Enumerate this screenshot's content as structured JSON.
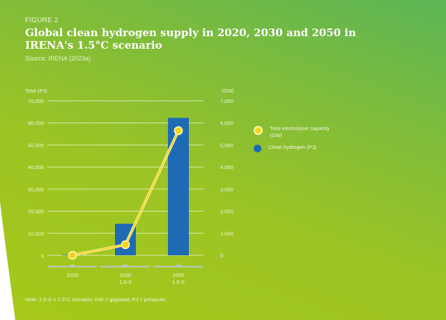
{
  "figure_label": "FIGURE 2",
  "title": "Global clean hydrogen supply in 2020, 2030 and 2050 in IRENA's 1.5°C scenario",
  "source": "Source: IRENA (2023a).",
  "note": "Note: 1.5-S = 1.5°C scenario;  GW = gigawatt; PJ = petajoule.",
  "colors": {
    "bar": "#1f6ab4",
    "line": "#f5d51a",
    "line_halo": "#f8f3b0",
    "grid": "#e9f3c8",
    "axis_base": "#b8c9b0"
  },
  "chart_data": {
    "type": "bar+line",
    "title": "Global clean hydrogen supply in 2020, 2030 and 2050 in IRENA's 1.5°C scenario",
    "categories": [
      {
        "line1": "2020",
        "line2": ""
      },
      {
        "line1": "2030",
        "line2": "1.5-S"
      },
      {
        "line1": "2050",
        "line2": "1.5-S"
      }
    ],
    "ylabel_left": "Total (PJ)",
    "ylabel_right": "(GW)",
    "ylim_left": [
      0,
      70000
    ],
    "ylim_right": [
      0,
      7000
    ],
    "yticks_left": [
      "0",
      "10,000",
      "20,000",
      "30,000",
      "40,000",
      "50,000",
      "60,000",
      "70,000"
    ],
    "yticks_right": [
      "0",
      "1,000",
      "2,000",
      "3,000",
      "4,000",
      "5,000",
      "6,000",
      "7,000"
    ],
    "grid": true,
    "legend_position": "right",
    "series": [
      {
        "name": "Clean hydrogen (PJ)",
        "type": "bar",
        "axis": "left",
        "values": [
          200,
          14300,
          62300
        ]
      },
      {
        "name": "Total electrolyser capacity (GW)",
        "type": "line",
        "axis": "right",
        "values": [
          0,
          480,
          5650
        ]
      }
    ],
    "legend": [
      {
        "label": "Total electrolyser capacity (GW)",
        "marker": "yellow"
      },
      {
        "label": "Clean hydrogen (PJ)",
        "marker": "blue"
      }
    ]
  }
}
